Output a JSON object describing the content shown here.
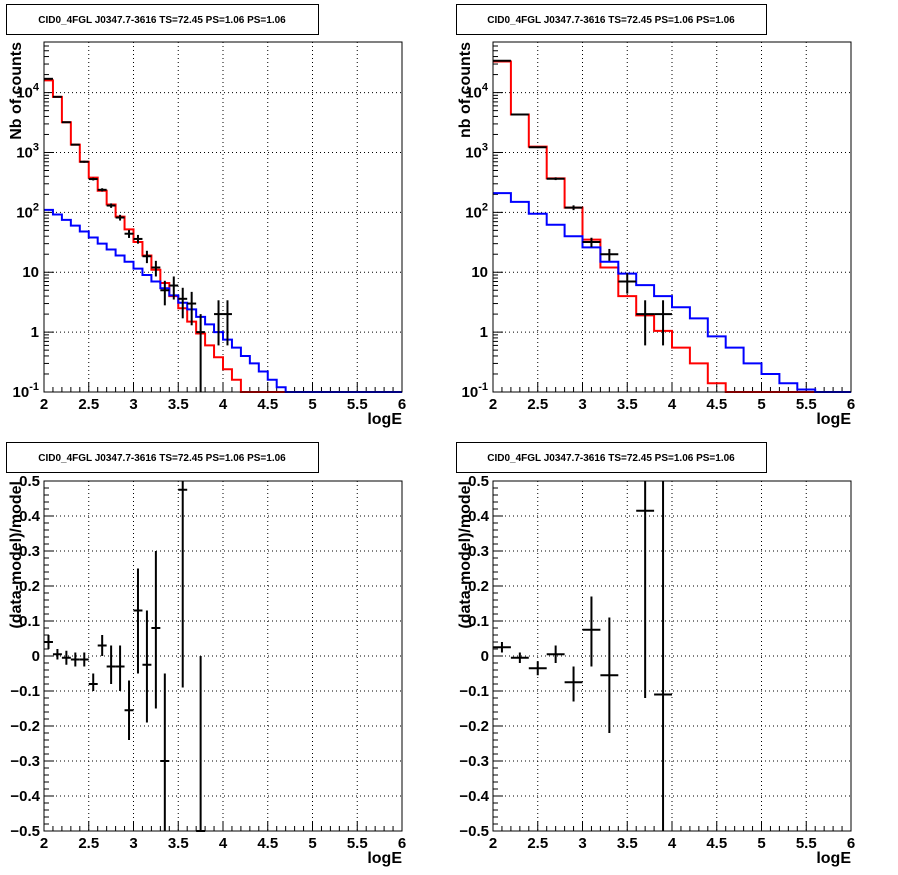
{
  "colors": {
    "data": "#000000",
    "model_total": "#ff0000",
    "model_background": "#0000ff",
    "grid": "#000000"
  },
  "chart_data": [
    {
      "type": "line",
      "title": "CID0_4FGL J0347.7-3616 TS=72.45 PS=1.06 PS=1.06",
      "xlabel": "logE",
      "ylabel": "Nb of counts",
      "xlim": [
        2,
        6
      ],
      "ylim": [
        0.1,
        70000
      ],
      "yscale": "log",
      "grid": true,
      "x_ticks": [
        "2",
        "2.5",
        "3",
        "3.5",
        "4",
        "4.5",
        "5",
        "5.5",
        "6"
      ],
      "y_ticks": [
        {
          "value": 0.1,
          "base": "10",
          "exp": "-1"
        },
        {
          "value": 1,
          "label": "1"
        },
        {
          "value": 10,
          "label": "10"
        },
        {
          "value": 100,
          "base": "10",
          "exp": "2"
        },
        {
          "value": 1000,
          "base": "10",
          "exp": "3"
        },
        {
          "value": 10000,
          "base": "10",
          "exp": "4"
        }
      ],
      "bin_edges": [
        2.0,
        2.1,
        2.2,
        2.3,
        2.4,
        2.5,
        2.6,
        2.7,
        2.8,
        2.9,
        3.0,
        3.1,
        3.2,
        3.3,
        3.4,
        3.5,
        3.6,
        3.7,
        3.8,
        3.9,
        4.0,
        4.1,
        4.2,
        4.3,
        4.4,
        4.5,
        4.6,
        4.7,
        4.8,
        4.9,
        5.0,
        5.1,
        5.2,
        5.3,
        5.4,
        5.5,
        5.6,
        5.7,
        5.8,
        5.9,
        6.0
      ],
      "series": [
        {
          "role": "model_total",
          "values": [
            16000,
            8500,
            3200,
            1350,
            700,
            380,
            230,
            135,
            85,
            52,
            32,
            19,
            11,
            6.6,
            4.0,
            2.5,
            1.5,
            0.95,
            0.6,
            0.38,
            0.24,
            0.16,
            0.1,
            0.1,
            0.1,
            0.1,
            0.1,
            0.1,
            0.1,
            0.1,
            0.1,
            0.1,
            0.1,
            0.1,
            0.1,
            0.1,
            0.1,
            0.1,
            0.1,
            0.1
          ]
        },
        {
          "role": "model_background",
          "values": [
            110,
            92,
            75,
            60,
            48,
            38,
            30,
            24,
            19,
            15,
            11.5,
            9,
            7,
            5.4,
            4.1,
            3.1,
            2.4,
            1.8,
            1.35,
            1.0,
            0.75,
            0.55,
            0.4,
            0.3,
            0.22,
            0.16,
            0.12,
            0.1,
            0.1,
            0.1,
            0.1,
            0.1,
            0.1,
            0.1,
            0.1,
            0.1,
            0.1,
            0.1,
            0.1,
            0.1
          ]
        },
        {
          "role": "data",
          "points": [
            {
              "x": 2.05,
              "y": 17000,
              "ylo": 16700,
              "yhi": 17300
            },
            {
              "x": 2.15,
              "y": 8500,
              "ylo": 8400,
              "yhi": 8600
            },
            {
              "x": 2.25,
              "y": 3200,
              "ylo": 3140,
              "yhi": 3260
            },
            {
              "x": 2.35,
              "y": 1350,
              "ylo": 1310,
              "yhi": 1390
            },
            {
              "x": 2.45,
              "y": 700,
              "ylo": 674,
              "yhi": 726
            },
            {
              "x": 2.55,
              "y": 360,
              "ylo": 341,
              "yhi": 379
            },
            {
              "x": 2.65,
              "y": 238,
              "ylo": 223,
              "yhi": 253
            },
            {
              "x": 2.75,
              "y": 130,
              "ylo": 119,
              "yhi": 141
            },
            {
              "x": 2.85,
              "y": 82,
              "ylo": 73,
              "yhi": 91
            },
            {
              "x": 2.95,
              "y": 44,
              "ylo": 37.4,
              "yhi": 50.6
            },
            {
              "x": 3.05,
              "y": 36,
              "ylo": 30,
              "yhi": 42
            },
            {
              "x": 3.15,
              "y": 18.5,
              "ylo": 14.2,
              "yhi": 22.8
            },
            {
              "x": 3.25,
              "y": 12,
              "ylo": 8.5,
              "yhi": 15.5
            },
            {
              "x": 3.35,
              "y": 5,
              "ylo": 2.8,
              "yhi": 7.2
            },
            {
              "x": 3.45,
              "y": 6,
              "ylo": 3.5,
              "yhi": 8.5
            },
            {
              "x": 3.55,
              "y": 3.6,
              "ylo": 1.7,
              "yhi": 5.5
            },
            {
              "x": 3.65,
              "y": 3,
              "ylo": 1.3,
              "yhi": 4.7
            },
            {
              "x": 3.75,
              "y": 1,
              "ylo": 0.1,
              "yhi": 2.0
            },
            {
              "x": 3.95,
              "y": 2,
              "ylo": 0.6,
              "yhi": 3.4
            },
            {
              "x": 4.05,
              "y": 2,
              "ylo": 0.6,
              "yhi": 3.4
            }
          ]
        }
      ]
    },
    {
      "type": "line",
      "title": "CID0_4FGL J0347.7-3616 TS=72.45 PS=1.06 PS=1.06",
      "xlabel": "logE",
      "ylabel": "nb of counts",
      "xlim": [
        2,
        6
      ],
      "ylim": [
        0.1,
        70000
      ],
      "yscale": "log",
      "grid": true,
      "x_ticks": [
        "2",
        "2.5",
        "3",
        "3.5",
        "4",
        "4.5",
        "5",
        "5.5",
        "6"
      ],
      "y_ticks": [
        {
          "value": 0.1,
          "base": "10",
          "exp": "-1"
        },
        {
          "value": 1,
          "label": "1"
        },
        {
          "value": 10,
          "label": "10"
        },
        {
          "value": 100,
          "base": "10",
          "exp": "2"
        },
        {
          "value": 1000,
          "base": "10",
          "exp": "3"
        },
        {
          "value": 10000,
          "base": "10",
          "exp": "4"
        }
      ],
      "bin_edges": [
        2.0,
        2.2,
        2.4,
        2.6,
        2.8,
        3.0,
        3.2,
        3.4,
        3.6,
        3.8,
        4.0,
        4.2,
        4.4,
        4.6,
        4.8,
        5.0,
        5.2,
        5.4,
        5.6,
        5.8,
        6.0
      ],
      "series": [
        {
          "role": "model_total",
          "values": [
            33000,
            4300,
            1250,
            370,
            120,
            35,
            12,
            4.0,
            1.9,
            1.05,
            0.55,
            0.3,
            0.14,
            0.1,
            0.1,
            0.1,
            0.1,
            0.1,
            0.1,
            0.1
          ]
        },
        {
          "role": "model_background",
          "values": [
            210,
            150,
            95,
            62,
            40,
            26,
            15,
            9.5,
            6.1,
            4.0,
            2.6,
            1.7,
            0.85,
            0.55,
            0.3,
            0.2,
            0.14,
            0.11,
            0.1,
            0.1
          ]
        },
        {
          "role": "data",
          "points": [
            {
              "x": 2.1,
              "y": 34000,
              "ylo": 33800,
              "yhi": 34200
            },
            {
              "x": 2.3,
              "y": 4300,
              "ylo": 4234,
              "yhi": 4366
            },
            {
              "x": 2.5,
              "y": 1220,
              "ylo": 1185,
              "yhi": 1255
            },
            {
              "x": 2.7,
              "y": 365,
              "ylo": 346,
              "yhi": 384
            },
            {
              "x": 2.9,
              "y": 120,
              "ylo": 109,
              "yhi": 131
            },
            {
              "x": 3.1,
              "y": 32,
              "ylo": 26.3,
              "yhi": 37.7
            },
            {
              "x": 3.3,
              "y": 20,
              "ylo": 15.5,
              "yhi": 24.5
            },
            {
              "x": 3.5,
              "y": 7,
              "ylo": 4.4,
              "yhi": 9.6
            },
            {
              "x": 3.7,
              "y": 2,
              "ylo": 0.6,
              "yhi": 3.4
            },
            {
              "x": 3.9,
              "y": 2,
              "ylo": 0.6,
              "yhi": 3.4
            }
          ]
        }
      ]
    },
    {
      "type": "scatter",
      "title": "CID0_4FGL J0347.7-3616 TS=72.45 PS=1.06 PS=1.06",
      "xlabel": "logE",
      "ylabel": "(data-model)/model",
      "xlim": [
        2,
        6
      ],
      "ylim": [
        -0.5,
        0.5
      ],
      "grid": true,
      "x_ticks": [
        "2",
        "2.5",
        "3",
        "3.5",
        "4",
        "4.5",
        "5",
        "5.5",
        "6"
      ],
      "y_ticks": [
        "−0.5",
        "−0.4",
        "−0.3",
        "−0.2",
        "−0.1",
        "0",
        "0.1",
        "0.2",
        "0.3",
        "0.4",
        "0.5"
      ],
      "bin_width": 0.1,
      "points": [
        {
          "x": 2.05,
          "y": 0.04,
          "ylo": 0.02,
          "yhi": 0.06
        },
        {
          "x": 2.15,
          "y": 0.005,
          "ylo": -0.01,
          "yhi": 0.02
        },
        {
          "x": 2.25,
          "y": -0.005,
          "ylo": -0.025,
          "yhi": 0.015
        },
        {
          "x": 2.35,
          "y": -0.01,
          "ylo": -0.03,
          "yhi": 0.01
        },
        {
          "x": 2.45,
          "y": -0.01,
          "ylo": -0.03,
          "yhi": 0.01
        },
        {
          "x": 2.55,
          "y": -0.08,
          "ylo": -0.1,
          "yhi": -0.05
        },
        {
          "x": 2.65,
          "y": 0.03,
          "ylo": 0.0,
          "yhi": 0.06
        },
        {
          "x": 2.75,
          "y": -0.03,
          "ylo": -0.08,
          "yhi": 0.03
        },
        {
          "x": 2.85,
          "y": -0.03,
          "ylo": -0.1,
          "yhi": 0.03
        },
        {
          "x": 2.95,
          "y": -0.155,
          "ylo": -0.24,
          "yhi": -0.07
        },
        {
          "x": 3.05,
          "y": 0.13,
          "ylo": -0.05,
          "yhi": 0.25
        },
        {
          "x": 3.15,
          "y": -0.025,
          "ylo": -0.19,
          "yhi": 0.13
        },
        {
          "x": 3.25,
          "y": 0.08,
          "ylo": -0.15,
          "yhi": 0.3
        },
        {
          "x": 3.35,
          "y": -0.3,
          "ylo": -0.5,
          "yhi": -0.05
        },
        {
          "x": 3.55,
          "y": 0.475,
          "ylo": -0.09,
          "yhi": 0.5
        },
        {
          "x": 3.75,
          "y": -0.5,
          "ylo": -0.5,
          "yhi": 0.0
        }
      ]
    },
    {
      "type": "scatter",
      "title": "CID0_4FGL J0347.7-3616 TS=72.45 PS=1.06 PS=1.06",
      "xlabel": "logE",
      "ylabel": "(data-model)/model",
      "xlim": [
        2,
        6
      ],
      "ylim": [
        -0.5,
        0.5
      ],
      "grid": true,
      "x_ticks": [
        "2",
        "2.5",
        "3",
        "3.5",
        "4",
        "4.5",
        "5",
        "5.5",
        "6"
      ],
      "y_ticks": [
        "−0.5",
        "−0.4",
        "−0.3",
        "−0.2",
        "−0.1",
        "0",
        "0.1",
        "0.2",
        "0.3",
        "0.4",
        "0.5"
      ],
      "bin_width": 0.2,
      "points": [
        {
          "x": 2.1,
          "y": 0.025,
          "ylo": 0.01,
          "yhi": 0.04
        },
        {
          "x": 2.3,
          "y": -0.005,
          "ylo": -0.02,
          "yhi": 0.01
        },
        {
          "x": 2.5,
          "y": -0.035,
          "ylo": -0.055,
          "yhi": -0.015
        },
        {
          "x": 2.7,
          "y": 0.005,
          "ylo": -0.02,
          "yhi": 0.03
        },
        {
          "x": 2.9,
          "y": -0.075,
          "ylo": -0.13,
          "yhi": -0.03
        },
        {
          "x": 3.1,
          "y": 0.075,
          "ylo": -0.03,
          "yhi": 0.17
        },
        {
          "x": 3.3,
          "y": -0.055,
          "ylo": -0.22,
          "yhi": 0.11
        },
        {
          "x": 3.7,
          "y": 0.415,
          "ylo": -0.12,
          "yhi": 0.5
        },
        {
          "x": 3.9,
          "y": -0.11,
          "ylo": -0.5,
          "yhi": 0.5
        }
      ]
    }
  ]
}
